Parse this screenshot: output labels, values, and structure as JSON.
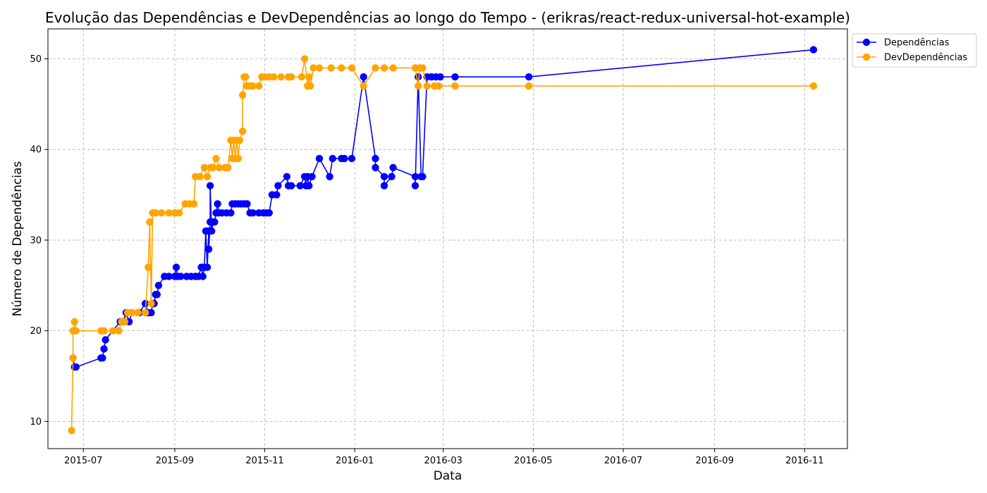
{
  "chart_data": {
    "type": "line",
    "title": "Evolução das Dependências e DevDependências ao longo do Tempo - (erikras/react-redux-universal-hot-example)",
    "xlabel": "Data",
    "ylabel": "Número de Dependências",
    "x_type": "date",
    "xlim": [
      "2015-06-07",
      "2016-11-30"
    ],
    "ylim": [
      7,
      53.3
    ],
    "x_ticks": [
      "2015-07",
      "2015-09",
      "2015-11",
      "2016-01",
      "2016-03",
      "2016-05",
      "2016-07",
      "2016-09",
      "2016-11"
    ],
    "y_ticks": [
      10,
      20,
      30,
      40,
      50
    ],
    "grid": true,
    "legend_position": "upper right, outside plot",
    "series": [
      {
        "name": "Dependências",
        "color": "#0000ff",
        "points": [
          [
            "2015-06-24",
            17
          ],
          [
            "2015-06-25",
            16
          ],
          [
            "2015-06-26",
            16
          ],
          [
            "2015-07-13",
            17
          ],
          [
            "2015-07-14",
            17
          ],
          [
            "2015-07-15",
            18
          ],
          [
            "2015-07-16",
            19
          ],
          [
            "2015-07-26",
            21
          ],
          [
            "2015-07-28",
            21
          ],
          [
            "2015-07-30",
            22
          ],
          [
            "2015-08-01",
            21
          ],
          [
            "2015-08-03",
            22
          ],
          [
            "2015-08-08",
            22
          ],
          [
            "2015-08-12",
            23
          ],
          [
            "2015-08-14",
            22
          ],
          [
            "2015-08-16",
            22
          ],
          [
            "2015-08-17",
            23
          ],
          [
            "2015-08-18",
            23
          ],
          [
            "2015-08-19",
            24
          ],
          [
            "2015-08-20",
            24
          ],
          [
            "2015-08-21",
            25
          ],
          [
            "2015-08-25",
            26
          ],
          [
            "2015-08-28",
            26
          ],
          [
            "2015-09-01",
            26
          ],
          [
            "2015-09-02",
            27
          ],
          [
            "2015-09-03",
            26
          ],
          [
            "2015-09-05",
            26
          ],
          [
            "2015-09-09",
            26
          ],
          [
            "2015-09-12",
            26
          ],
          [
            "2015-09-15",
            26
          ],
          [
            "2015-09-17",
            26
          ],
          [
            "2015-09-19",
            27
          ],
          [
            "2015-09-20",
            26
          ],
          [
            "2015-09-21",
            27
          ],
          [
            "2015-09-22",
            31
          ],
          [
            "2015-09-23",
            27
          ],
          [
            "2015-09-24",
            31
          ],
          [
            "2015-09-24",
            29
          ],
          [
            "2015-09-25",
            32
          ],
          [
            "2015-09-25",
            36
          ],
          [
            "2015-09-26",
            31
          ],
          [
            "2015-09-27",
            32
          ],
          [
            "2015-09-28",
            32
          ],
          [
            "2015-09-29",
            33
          ],
          [
            "2015-09-30",
            34
          ],
          [
            "2015-10-01",
            33
          ],
          [
            "2015-10-03",
            33
          ],
          [
            "2015-10-06",
            33
          ],
          [
            "2015-10-09",
            33
          ],
          [
            "2015-10-10",
            34
          ],
          [
            "2015-10-12",
            34
          ],
          [
            "2015-10-14",
            34
          ],
          [
            "2015-10-16",
            34
          ],
          [
            "2015-10-18",
            34
          ],
          [
            "2015-10-20",
            34
          ],
          [
            "2015-10-22",
            33
          ],
          [
            "2015-10-24",
            33
          ],
          [
            "2015-10-28",
            33
          ],
          [
            "2015-10-31",
            33
          ],
          [
            "2015-11-02",
            33
          ],
          [
            "2015-11-04",
            33
          ],
          [
            "2015-11-06",
            35
          ],
          [
            "2015-11-09",
            35
          ],
          [
            "2015-11-10",
            36
          ],
          [
            "2015-11-16",
            37
          ],
          [
            "2015-11-17",
            36
          ],
          [
            "2015-11-19",
            36
          ],
          [
            "2015-11-25",
            36
          ],
          [
            "2015-11-28",
            37
          ],
          [
            "2015-11-29",
            36
          ],
          [
            "2015-11-30",
            37
          ],
          [
            "2015-12-01",
            36
          ],
          [
            "2015-12-03",
            37
          ],
          [
            "2015-12-08",
            39
          ],
          [
            "2015-12-15",
            37
          ],
          [
            "2015-12-17",
            39
          ],
          [
            "2015-12-23",
            39
          ],
          [
            "2015-12-25",
            39
          ],
          [
            "2015-12-30",
            39
          ],
          [
            "2016-01-07",
            48
          ],
          [
            "2016-01-15",
            39
          ],
          [
            "2016-01-15",
            38
          ],
          [
            "2016-01-21",
            37
          ],
          [
            "2016-01-21",
            36
          ],
          [
            "2016-01-26",
            37
          ],
          [
            "2016-01-27",
            38
          ],
          [
            "2016-02-11",
            37
          ],
          [
            "2016-02-11",
            36
          ],
          [
            "2016-02-13",
            48
          ],
          [
            "2016-02-15",
            37
          ],
          [
            "2016-02-16",
            37
          ],
          [
            "2016-02-19",
            48
          ],
          [
            "2016-02-22",
            48
          ],
          [
            "2016-02-25",
            48
          ],
          [
            "2016-02-28",
            48
          ],
          [
            "2016-03-09",
            48
          ],
          [
            "2016-04-28",
            48
          ],
          [
            "2016-11-07",
            51
          ]
        ]
      },
      {
        "name": "DevDependências",
        "color": "#ffa500",
        "points": [
          [
            "2015-06-23",
            9
          ],
          [
            "2015-06-24",
            17
          ],
          [
            "2015-06-24",
            20
          ],
          [
            "2015-06-25",
            21
          ],
          [
            "2015-06-26",
            20
          ],
          [
            "2015-07-13",
            20
          ],
          [
            "2015-07-15",
            20
          ],
          [
            "2015-07-21",
            20
          ],
          [
            "2015-07-25",
            20
          ],
          [
            "2015-07-27",
            21
          ],
          [
            "2015-07-29",
            21
          ],
          [
            "2015-07-31",
            22
          ],
          [
            "2015-08-03",
            22
          ],
          [
            "2015-08-07",
            22
          ],
          [
            "2015-08-12",
            22
          ],
          [
            "2015-08-14",
            27
          ],
          [
            "2015-08-15",
            32
          ],
          [
            "2015-08-16",
            23
          ],
          [
            "2015-08-17",
            33
          ],
          [
            "2015-08-19",
            33
          ],
          [
            "2015-08-23",
            33
          ],
          [
            "2015-08-28",
            33
          ],
          [
            "2015-09-01",
            33
          ],
          [
            "2015-09-04",
            33
          ],
          [
            "2015-09-08",
            34
          ],
          [
            "2015-09-11",
            34
          ],
          [
            "2015-09-14",
            34
          ],
          [
            "2015-09-15",
            37
          ],
          [
            "2015-09-18",
            37
          ],
          [
            "2015-09-21",
            38
          ],
          [
            "2015-09-23",
            37
          ],
          [
            "2015-09-25",
            38
          ],
          [
            "2015-09-27",
            38
          ],
          [
            "2015-09-29",
            39
          ],
          [
            "2015-10-01",
            38
          ],
          [
            "2015-10-05",
            38
          ],
          [
            "2015-10-07",
            38
          ],
          [
            "2015-10-09",
            41
          ],
          [
            "2015-10-10",
            39
          ],
          [
            "2015-10-11",
            41
          ],
          [
            "2015-10-12",
            39
          ],
          [
            "2015-10-13",
            41
          ],
          [
            "2015-10-14",
            39
          ],
          [
            "2015-10-15",
            41
          ],
          [
            "2015-10-17",
            42
          ],
          [
            "2015-10-17",
            46
          ],
          [
            "2015-10-18",
            48
          ],
          [
            "2015-10-19",
            48
          ],
          [
            "2015-10-20",
            47
          ],
          [
            "2015-10-22",
            47
          ],
          [
            "2015-10-24",
            47
          ],
          [
            "2015-10-28",
            47
          ],
          [
            "2015-10-30",
            48
          ],
          [
            "2015-11-01",
            48
          ],
          [
            "2015-11-04",
            48
          ],
          [
            "2015-11-07",
            48
          ],
          [
            "2015-11-12",
            48
          ],
          [
            "2015-11-17",
            48
          ],
          [
            "2015-11-19",
            48
          ],
          [
            "2015-11-26",
            48
          ],
          [
            "2015-11-28",
            50
          ],
          [
            "2015-11-30",
            47
          ],
          [
            "2015-12-01",
            48
          ],
          [
            "2015-12-02",
            47
          ],
          [
            "2015-12-04",
            49
          ],
          [
            "2015-12-08",
            49
          ],
          [
            "2015-12-16",
            49
          ],
          [
            "2015-12-23",
            49
          ],
          [
            "2015-12-30",
            49
          ],
          [
            "2016-01-07",
            47
          ],
          [
            "2016-01-15",
            49
          ],
          [
            "2016-01-21",
            49
          ],
          [
            "2016-01-27",
            49
          ],
          [
            "2016-02-11",
            49
          ],
          [
            "2016-02-13",
            47
          ],
          [
            "2016-02-14",
            49
          ],
          [
            "2016-02-16",
            49
          ],
          [
            "2016-02-19",
            47
          ],
          [
            "2016-02-24",
            47
          ],
          [
            "2016-02-27",
            47
          ],
          [
            "2016-03-09",
            47
          ],
          [
            "2016-04-28",
            47
          ],
          [
            "2016-11-07",
            47
          ]
        ]
      }
    ]
  }
}
